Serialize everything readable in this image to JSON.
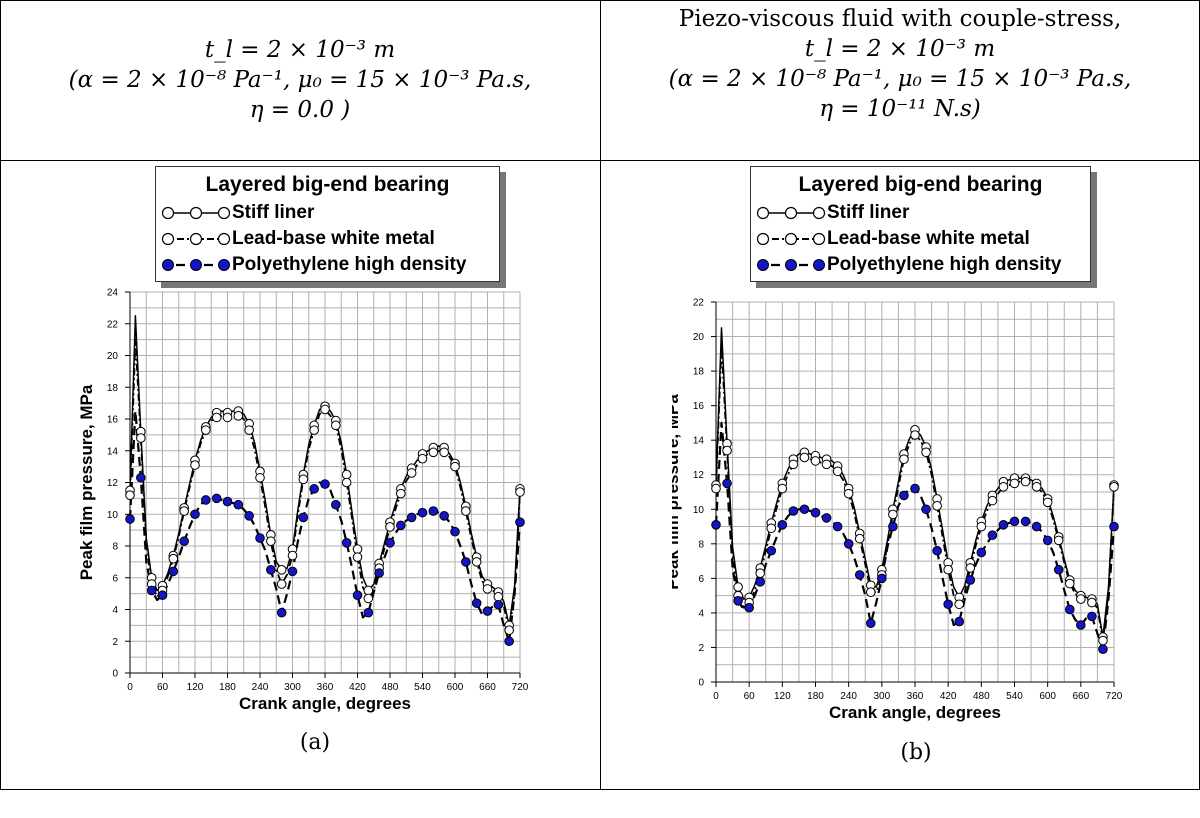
{
  "headers": {
    "left_lines": [
      "t_l = 2 × 10⁻³ m",
      "(α = 2 × 10⁻⁸ Pa⁻¹,  μ₀ = 15 × 10⁻³ Pa.s,",
      "η = 0.0 )"
    ],
    "right_lines": [
      "Piezo-viscous fluid with couple-stress,",
      "t_l = 2 × 10⁻³ m",
      "(α = 2 × 10⁻⁸ Pa⁻¹,  μ₀ = 15 × 10⁻³ Pa.s,",
      "η = 10⁻¹¹ N.s)"
    ]
  },
  "legend": {
    "title": "Layered big-end bearing",
    "entries": [
      "Stiff liner",
      "Lead-base white metal",
      "Polyethylene high density"
    ]
  },
  "captions": [
    "(a)",
    "(b)"
  ],
  "colors": {
    "stiff": "#000000",
    "white_metal": "#000000",
    "polyethylene": "#1515c8",
    "grid": "#b0b0b0"
  },
  "chart_data": [
    {
      "type": "line",
      "xlabel": "Crank angle, degrees",
      "ylabel": "Peak film pressure, MPa",
      "xlim": [
        0,
        720
      ],
      "ylim": [
        0,
        24
      ],
      "xticks": [
        0,
        60,
        120,
        180,
        240,
        300,
        360,
        420,
        480,
        540,
        600,
        660,
        720
      ],
      "yticks": [
        0,
        2,
        4,
        6,
        8,
        10,
        12,
        14,
        16,
        18,
        20,
        22,
        24
      ],
      "grid": true,
      "series": [
        {
          "name": "Stiff liner",
          "style": "solid-open",
          "x": [
            0,
            10,
            20,
            30,
            40,
            50,
            60,
            70,
            80,
            90,
            100,
            110,
            120,
            130,
            140,
            150,
            160,
            170,
            180,
            190,
            200,
            210,
            220,
            230,
            240,
            250,
            260,
            270,
            280,
            290,
            300,
            310,
            320,
            330,
            340,
            350,
            360,
            370,
            380,
            390,
            400,
            410,
            420,
            430,
            440,
            450,
            460,
            470,
            480,
            490,
            500,
            510,
            520,
            530,
            540,
            550,
            560,
            570,
            580,
            590,
            600,
            610,
            620,
            630,
            640,
            650,
            660,
            670,
            680,
            690,
            700,
            710,
            720
          ],
          "y": [
            11.5,
            22.5,
            15.2,
            8.5,
            6.0,
            5.2,
            5.5,
            6.3,
            7.4,
            8.8,
            10.4,
            11.9,
            13.4,
            14.6,
            15.5,
            16.1,
            16.4,
            16.5,
            16.4,
            16.5,
            16.5,
            16.3,
            15.7,
            14.5,
            12.7,
            10.8,
            8.7,
            7.0,
            6.5,
            6.6,
            7.8,
            10.3,
            12.5,
            14.4,
            15.6,
            16.6,
            16.8,
            16.5,
            15.9,
            14.5,
            12.5,
            10.1,
            7.8,
            6.0,
            5.2,
            5.6,
            6.9,
            8.2,
            9.5,
            10.6,
            11.6,
            12.4,
            12.9,
            13.4,
            13.8,
            14.0,
            14.2,
            14.3,
            14.2,
            13.8,
            13.2,
            12.0,
            10.5,
            8.8,
            7.3,
            6.1,
            5.6,
            5.4,
            5.1,
            4.5,
            3.0,
            5.5,
            11.6
          ]
        },
        {
          "name": "Lead-base white metal",
          "style": "dashdot-open",
          "x": [
            0,
            10,
            20,
            30,
            40,
            50,
            60,
            70,
            80,
            90,
            100,
            110,
            120,
            130,
            140,
            150,
            160,
            170,
            180,
            190,
            200,
            210,
            220,
            230,
            240,
            250,
            260,
            270,
            280,
            290,
            300,
            310,
            320,
            330,
            340,
            350,
            360,
            370,
            380,
            390,
            400,
            410,
            420,
            430,
            440,
            450,
            460,
            470,
            480,
            490,
            500,
            510,
            520,
            530,
            540,
            550,
            560,
            570,
            580,
            590,
            600,
            610,
            620,
            630,
            640,
            650,
            660,
            670,
            680,
            690,
            700,
            710,
            720
          ],
          "y": [
            11.2,
            21.0,
            14.8,
            8.1,
            5.6,
            4.8,
            5.2,
            6.1,
            7.2,
            8.6,
            10.2,
            11.7,
            13.1,
            14.4,
            15.3,
            15.9,
            16.1,
            16.2,
            16.1,
            16.1,
            16.2,
            16.0,
            15.3,
            14.1,
            12.3,
            10.4,
            8.3,
            6.5,
            5.6,
            6.2,
            7.4,
            10.0,
            12.2,
            14.1,
            15.3,
            16.3,
            16.6,
            16.2,
            15.6,
            14.1,
            12.0,
            9.7,
            7.3,
            5.4,
            4.7,
            5.2,
            6.6,
            7.9,
            9.2,
            10.3,
            11.3,
            12.1,
            12.6,
            13.1,
            13.5,
            13.8,
            13.9,
            14.0,
            13.9,
            13.6,
            13.0,
            11.7,
            10.2,
            8.5,
            7.0,
            5.8,
            5.3,
            5.2,
            4.8,
            4.2,
            2.7,
            5.0,
            11.4
          ]
        },
        {
          "name": "Polyethylene high density",
          "style": "dash-filled",
          "x": [
            0,
            10,
            20,
            30,
            40,
            50,
            60,
            70,
            80,
            90,
            100,
            110,
            120,
            130,
            140,
            150,
            160,
            170,
            180,
            190,
            200,
            210,
            220,
            230,
            240,
            250,
            260,
            270,
            280,
            290,
            300,
            310,
            320,
            330,
            340,
            350,
            360,
            370,
            380,
            390,
            400,
            410,
            420,
            430,
            440,
            450,
            460,
            470,
            480,
            490,
            500,
            510,
            520,
            530,
            540,
            550,
            560,
            570,
            580,
            590,
            600,
            610,
            620,
            630,
            640,
            650,
            660,
            670,
            680,
            690,
            700,
            710,
            720
          ],
          "y": [
            9.7,
            16.5,
            12.3,
            7.0,
            5.2,
            4.6,
            4.9,
            5.6,
            6.4,
            7.3,
            8.3,
            9.2,
            10.0,
            10.6,
            10.9,
            11.0,
            11.0,
            10.9,
            10.8,
            10.7,
            10.6,
            10.3,
            9.9,
            9.3,
            8.5,
            7.7,
            6.5,
            5.3,
            3.8,
            5.0,
            6.4,
            8.3,
            9.8,
            11.0,
            11.6,
            12.0,
            11.9,
            11.5,
            10.6,
            9.6,
            8.2,
            6.6,
            4.9,
            3.5,
            3.8,
            5.1,
            6.3,
            7.3,
            8.2,
            8.8,
            9.3,
            9.6,
            9.8,
            10.0,
            10.1,
            10.2,
            10.2,
            10.1,
            9.9,
            9.5,
            8.9,
            8.0,
            7.0,
            5.6,
            4.4,
            3.7,
            3.9,
            4.2,
            4.3,
            3.0,
            2.0,
            5.0,
            9.5
          ]
        }
      ]
    },
    {
      "type": "line",
      "xlabel": "Crank angle, degrees",
      "ylabel": "Peak film pressure, MPa",
      "xlim": [
        0,
        720
      ],
      "ylim": [
        0,
        22
      ],
      "xticks": [
        0,
        60,
        120,
        180,
        240,
        300,
        360,
        420,
        480,
        540,
        600,
        660,
        720
      ],
      "yticks": [
        0,
        2,
        4,
        6,
        8,
        10,
        12,
        14,
        16,
        18,
        20,
        22
      ],
      "grid": true,
      "series": [
        {
          "name": "Stiff liner",
          "style": "solid-open",
          "x": [
            0,
            10,
            20,
            30,
            40,
            50,
            60,
            70,
            80,
            90,
            100,
            110,
            120,
            130,
            140,
            150,
            160,
            170,
            180,
            190,
            200,
            210,
            220,
            230,
            240,
            250,
            260,
            270,
            280,
            290,
            300,
            310,
            320,
            330,
            340,
            350,
            360,
            370,
            380,
            390,
            400,
            410,
            420,
            430,
            440,
            450,
            460,
            470,
            480,
            490,
            500,
            510,
            520,
            530,
            540,
            550,
            560,
            570,
            580,
            590,
            600,
            610,
            620,
            630,
            640,
            650,
            660,
            670,
            680,
            690,
            700,
            710,
            720
          ],
          "y": [
            11.4,
            20.5,
            13.8,
            7.8,
            5.5,
            4.8,
            4.9,
            5.6,
            6.6,
            7.9,
            9.2,
            10.4,
            11.5,
            12.3,
            12.9,
            13.2,
            13.3,
            13.2,
            13.1,
            13.0,
            12.9,
            12.8,
            12.5,
            12.0,
            11.2,
            10.1,
            8.6,
            7.1,
            5.6,
            5.5,
            6.5,
            8.2,
            10.0,
            11.6,
            13.2,
            14.1,
            14.6,
            14.3,
            13.6,
            12.3,
            10.6,
            8.8,
            6.9,
            5.5,
            4.9,
            5.6,
            6.9,
            8.2,
            9.3,
            10.2,
            10.8,
            11.2,
            11.6,
            11.7,
            11.8,
            11.8,
            11.8,
            11.7,
            11.5,
            11.2,
            10.6,
            9.6,
            8.4,
            7.1,
            5.9,
            5.3,
            5.0,
            4.9,
            4.8,
            4.5,
            2.6,
            5.5,
            11.4
          ]
        },
        {
          "name": "Lead-base white metal",
          "style": "dashdot-open",
          "x": [
            0,
            10,
            20,
            30,
            40,
            50,
            60,
            70,
            80,
            90,
            100,
            110,
            120,
            130,
            140,
            150,
            160,
            170,
            180,
            190,
            200,
            210,
            220,
            230,
            240,
            250,
            260,
            270,
            280,
            290,
            300,
            310,
            320,
            330,
            340,
            350,
            360,
            370,
            380,
            390,
            400,
            410,
            420,
            430,
            440,
            450,
            460,
            470,
            480,
            490,
            500,
            510,
            520,
            530,
            540,
            550,
            560,
            570,
            580,
            590,
            600,
            610,
            620,
            630,
            640,
            650,
            660,
            670,
            680,
            690,
            700,
            710,
            720
          ],
          "y": [
            11.2,
            19.5,
            13.4,
            7.4,
            5.0,
            4.3,
            4.6,
            5.3,
            6.3,
            7.6,
            8.9,
            10.1,
            11.2,
            12.0,
            12.6,
            12.9,
            13.0,
            12.9,
            12.8,
            12.7,
            12.6,
            12.5,
            12.2,
            11.7,
            10.9,
            9.8,
            8.3,
            6.8,
            5.2,
            5.2,
            6.2,
            7.9,
            9.7,
            11.3,
            12.9,
            13.8,
            14.3,
            14.0,
            13.3,
            12.0,
            10.2,
            8.4,
            6.5,
            5.0,
            4.5,
            5.2,
            6.6,
            7.9,
            9.0,
            9.9,
            10.5,
            10.9,
            11.3,
            11.4,
            11.5,
            11.6,
            11.6,
            11.5,
            11.3,
            11.0,
            10.4,
            9.4,
            8.2,
            6.9,
            5.7,
            5.1,
            4.8,
            4.7,
            4.6,
            4.3,
            2.4,
            5.2,
            11.3
          ]
        },
        {
          "name": "Polyethylene high density",
          "style": "dash-filled",
          "x": [
            0,
            10,
            20,
            30,
            40,
            50,
            60,
            70,
            80,
            90,
            100,
            110,
            120,
            130,
            140,
            150,
            160,
            170,
            180,
            190,
            200,
            210,
            220,
            230,
            240,
            250,
            260,
            270,
            280,
            290,
            300,
            310,
            320,
            330,
            340,
            350,
            360,
            370,
            380,
            390,
            400,
            410,
            420,
            430,
            440,
            450,
            460,
            470,
            480,
            490,
            500,
            510,
            520,
            530,
            540,
            550,
            560,
            570,
            580,
            590,
            600,
            610,
            620,
            630,
            640,
            650,
            660,
            670,
            680,
            690,
            700,
            710,
            720
          ],
          "y": [
            9.1,
            15.0,
            11.5,
            6.6,
            4.7,
            4.2,
            4.3,
            5.0,
            5.8,
            6.8,
            7.6,
            8.4,
            9.1,
            9.6,
            9.9,
            10.0,
            10.0,
            9.9,
            9.8,
            9.6,
            9.5,
            9.3,
            9.0,
            8.6,
            8.0,
            7.2,
            6.2,
            5.0,
            3.4,
            4.6,
            6.0,
            7.8,
            9.0,
            10.2,
            10.8,
            11.2,
            11.2,
            10.8,
            10.0,
            8.9,
            7.6,
            6.0,
            4.5,
            3.3,
            3.5,
            4.8,
            5.9,
            6.8,
            7.5,
            8.0,
            8.5,
            8.8,
            9.1,
            9.2,
            9.3,
            9.3,
            9.3,
            9.2,
            9.0,
            8.7,
            8.2,
            7.5,
            6.5,
            5.3,
            4.2,
            3.6,
            3.3,
            3.7,
            3.8,
            2.8,
            1.9,
            4.8,
            9.0
          ]
        }
      ]
    }
  ]
}
